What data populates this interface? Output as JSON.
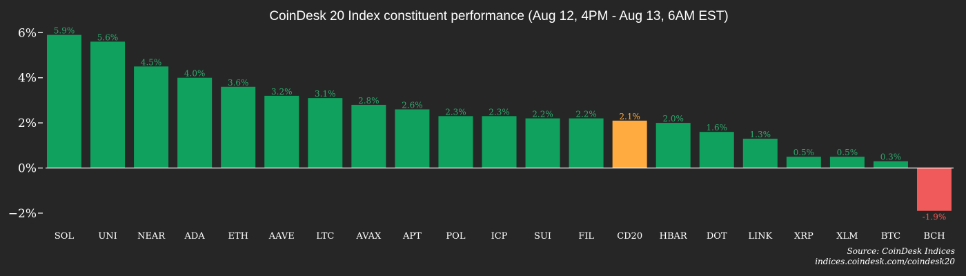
{
  "chart_data": {
    "type": "bar",
    "title": "CoinDesk 20 Index constituent performance (Aug 12, 4PM - Aug 13, 6AM EST)",
    "xlabel": "",
    "ylabel": "",
    "categories": [
      "SOL",
      "UNI",
      "NEAR",
      "ADA",
      "ETH",
      "AAVE",
      "LTC",
      "AVAX",
      "APT",
      "POL",
      "ICP",
      "SUI",
      "FIL",
      "CD20",
      "HBAR",
      "DOT",
      "LINK",
      "XRP",
      "XLM",
      "BTC",
      "BCH"
    ],
    "values": [
      5.9,
      5.6,
      4.5,
      4.0,
      3.6,
      3.2,
      3.1,
      2.8,
      2.6,
      2.3,
      2.3,
      2.2,
      2.2,
      2.1,
      2.0,
      1.6,
      1.3,
      0.5,
      0.5,
      0.3,
      -1.9
    ],
    "value_labels": [
      "5.9%",
      "5.6%",
      "4.5%",
      "4.0%",
      "3.6%",
      "3.2%",
      "3.1%",
      "2.8%",
      "2.6%",
      "2.3%",
      "2.3%",
      "2.2%",
      "2.2%",
      "2.1%",
      "2.0%",
      "1.6%",
      "1.3%",
      "0.5%",
      "0.5%",
      "0.3%",
      "-1.9%"
    ],
    "yticks": [
      -2,
      0,
      2,
      4,
      6
    ],
    "ytick_labels": [
      "−2%",
      "0%",
      "2%",
      "4%",
      "6%"
    ],
    "ylim": [
      -2.2,
      6.1
    ],
    "grid": false,
    "highlight_category": "CD20",
    "colors": {
      "positive": "#10a15e",
      "negative": "#f05a5a",
      "highlight": "#ffab3f",
      "positive_label": "#2eaa6e",
      "negative_label": "#f05a5a",
      "highlight_label": "#ffab3f",
      "background": "#262626",
      "axis": "#ffffff"
    }
  },
  "source": {
    "line1": "Source: CoinDesk Indices",
    "line2": "indices.coindesk.com/coindesk20"
  }
}
